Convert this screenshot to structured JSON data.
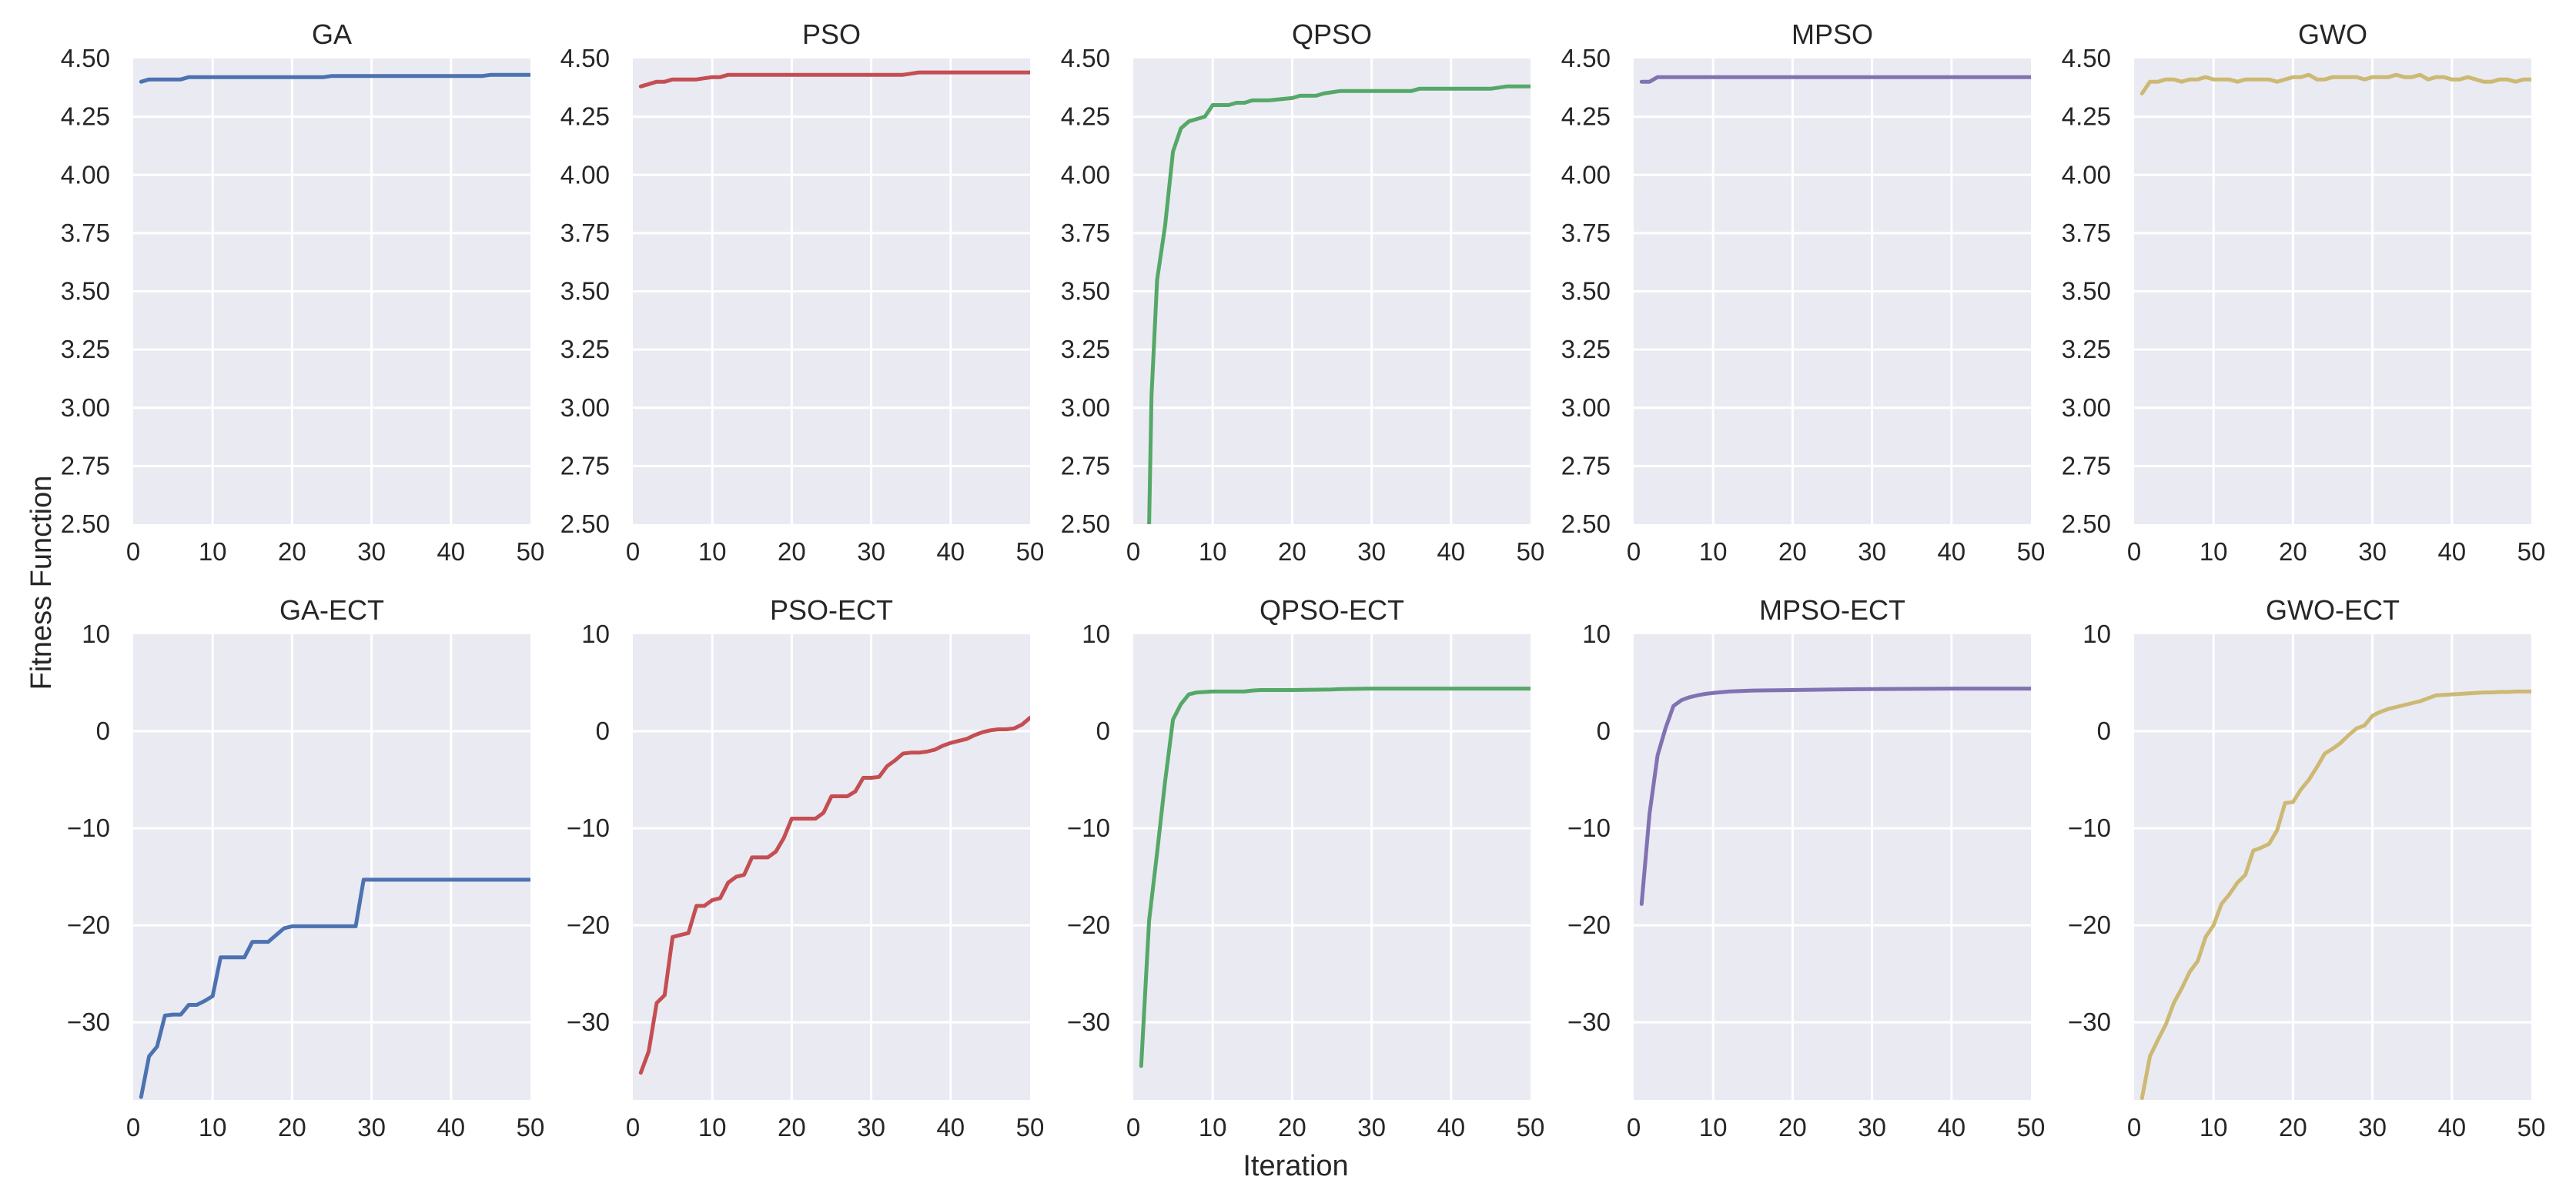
{
  "figure": {
    "xlabel": "Iteration",
    "ylabel": "Fitness Function"
  },
  "chart_data": [
    {
      "type": "line",
      "title": "GA",
      "color": "#4c72b0",
      "xlim": [
        0,
        50
      ],
      "ylim": [
        2.5,
        4.5
      ],
      "xticks": [
        0,
        10,
        20,
        30,
        40,
        50
      ],
      "yticks": [
        2.5,
        2.75,
        3.0,
        3.25,
        3.5,
        3.75,
        4.0,
        4.25,
        4.5
      ],
      "ytick_labels": [
        "2.50",
        "2.75",
        "3.00",
        "3.25",
        "3.50",
        "3.75",
        "4.00",
        "4.25",
        "4.50"
      ],
      "series": [
        {
          "name": "GA",
          "x": [
            1,
            2,
            3,
            4,
            5,
            6,
            7,
            8,
            10,
            15,
            20,
            24,
            25,
            30,
            35,
            40,
            44,
            45,
            46,
            50
          ],
          "y": [
            4.4,
            4.41,
            4.41,
            4.41,
            4.41,
            4.41,
            4.42,
            4.42,
            4.42,
            4.42,
            4.42,
            4.42,
            4.425,
            4.425,
            4.425,
            4.425,
            4.425,
            4.43,
            4.43,
            4.43
          ]
        }
      ]
    },
    {
      "type": "line",
      "title": "PSO",
      "color": "#c44e52",
      "xlim": [
        0,
        50
      ],
      "ylim": [
        2.5,
        4.5
      ],
      "xticks": [
        0,
        10,
        20,
        30,
        40,
        50
      ],
      "yticks": [
        2.5,
        2.75,
        3.0,
        3.25,
        3.5,
        3.75,
        4.0,
        4.25,
        4.5
      ],
      "ytick_labels": [
        "2.50",
        "2.75",
        "3.00",
        "3.25",
        "3.50",
        "3.75",
        "4.00",
        "4.25",
        "4.50"
      ],
      "series": [
        {
          "name": "PSO",
          "x": [
            1,
            2,
            3,
            4,
            5,
            6,
            8,
            10,
            11,
            12,
            15,
            20,
            25,
            30,
            34,
            35,
            36,
            40,
            45,
            50
          ],
          "y": [
            4.38,
            4.39,
            4.4,
            4.4,
            4.41,
            4.41,
            4.41,
            4.42,
            4.42,
            4.43,
            4.43,
            4.43,
            4.43,
            4.43,
            4.43,
            4.435,
            4.44,
            4.44,
            4.44,
            4.44
          ]
        }
      ]
    },
    {
      "type": "line",
      "title": "QPSO",
      "color": "#55a868",
      "xlim": [
        0,
        50
      ],
      "ylim": [
        2.5,
        4.5
      ],
      "xticks": [
        0,
        10,
        20,
        30,
        40,
        50
      ],
      "yticks": [
        2.5,
        2.75,
        3.0,
        3.25,
        3.5,
        3.75,
        4.0,
        4.25,
        4.5
      ],
      "ytick_labels": [
        "2.50",
        "2.75",
        "3.00",
        "3.25",
        "3.50",
        "3.75",
        "4.00",
        "4.25",
        "4.50"
      ],
      "series": [
        {
          "name": "QPSO",
          "x": [
            2,
            2.3,
            3,
            4,
            5,
            6,
            7,
            8,
            9,
            10,
            12,
            13,
            14,
            15,
            17,
            20,
            21,
            23,
            24,
            26,
            30,
            35,
            36,
            40,
            45,
            47,
            50
          ],
          "y": [
            2.5,
            3.05,
            3.55,
            3.78,
            4.1,
            4.2,
            4.23,
            4.24,
            4.25,
            4.3,
            4.3,
            4.31,
            4.31,
            4.32,
            4.32,
            4.33,
            4.34,
            4.34,
            4.35,
            4.36,
            4.36,
            4.36,
            4.37,
            4.37,
            4.37,
            4.38,
            4.38
          ]
        }
      ]
    },
    {
      "type": "line",
      "title": "MPSO",
      "color": "#8172b2",
      "xlim": [
        0,
        50
      ],
      "ylim": [
        2.5,
        4.5
      ],
      "xticks": [
        0,
        10,
        20,
        30,
        40,
        50
      ],
      "yticks": [
        2.5,
        2.75,
        3.0,
        3.25,
        3.5,
        3.75,
        4.0,
        4.25,
        4.5
      ],
      "ytick_labels": [
        "2.50",
        "2.75",
        "3.00",
        "3.25",
        "3.50",
        "3.75",
        "4.00",
        "4.25",
        "4.50"
      ],
      "series": [
        {
          "name": "MPSO",
          "x": [
            1,
            2,
            3,
            4,
            10,
            20,
            30,
            40,
            50
          ],
          "y": [
            4.4,
            4.4,
            4.42,
            4.42,
            4.42,
            4.42,
            4.42,
            4.42,
            4.42
          ]
        }
      ]
    },
    {
      "type": "line",
      "title": "GWO",
      "color": "#ccb974",
      "xlim": [
        0,
        50
      ],
      "ylim": [
        2.5,
        4.5
      ],
      "xticks": [
        0,
        10,
        20,
        30,
        40,
        50
      ],
      "yticks": [
        2.5,
        2.75,
        3.0,
        3.25,
        3.5,
        3.75,
        4.0,
        4.25,
        4.5
      ],
      "ytick_labels": [
        "2.50",
        "2.75",
        "3.00",
        "3.25",
        "3.50",
        "3.75",
        "4.00",
        "4.25",
        "4.50"
      ],
      "series": [
        {
          "name": "GWO",
          "x": [
            1,
            2,
            3,
            4,
            5,
            6,
            7,
            8,
            9,
            10,
            11,
            12,
            13,
            14,
            15,
            16,
            17,
            18,
            19,
            20,
            21,
            22,
            23,
            24,
            25,
            26,
            27,
            28,
            29,
            30,
            31,
            32,
            33,
            34,
            35,
            36,
            37,
            38,
            39,
            40,
            41,
            42,
            43,
            44,
            45,
            46,
            47,
            48,
            49,
            50
          ],
          "y": [
            4.35,
            4.4,
            4.4,
            4.41,
            4.41,
            4.4,
            4.41,
            4.41,
            4.42,
            4.41,
            4.41,
            4.41,
            4.4,
            4.41,
            4.41,
            4.41,
            4.41,
            4.4,
            4.41,
            4.42,
            4.42,
            4.43,
            4.41,
            4.41,
            4.42,
            4.42,
            4.42,
            4.42,
            4.41,
            4.42,
            4.42,
            4.42,
            4.43,
            4.42,
            4.42,
            4.43,
            4.41,
            4.42,
            4.42,
            4.41,
            4.41,
            4.42,
            4.41,
            4.4,
            4.4,
            4.41,
            4.41,
            4.4,
            4.41,
            4.41
          ]
        }
      ]
    },
    {
      "type": "line",
      "title": "GA-ECT",
      "color": "#4c72b0",
      "xlim": [
        0,
        50
      ],
      "ylim": [
        -38,
        10
      ],
      "xticks": [
        0,
        10,
        20,
        30,
        40,
        50
      ],
      "yticks": [
        -30,
        -20,
        -10,
        0,
        10
      ],
      "ytick_labels": [
        "−30",
        "−20",
        "−10",
        "0",
        "10"
      ],
      "series": [
        {
          "name": "GA-ECT",
          "x": [
            1,
            2,
            3,
            4,
            5,
            6,
            7,
            8,
            9,
            10,
            11,
            12,
            13,
            14,
            15,
            16,
            17,
            18,
            19,
            20,
            21,
            25,
            28,
            29,
            30,
            40,
            50
          ],
          "y": [
            -37.7,
            -33.5,
            -32.5,
            -29.3,
            -29.2,
            -29.2,
            -28.2,
            -28.2,
            -27.8,
            -27.3,
            -23.3,
            -23.3,
            -23.3,
            -23.3,
            -21.7,
            -21.7,
            -21.7,
            -21.0,
            -20.3,
            -20.1,
            -20.1,
            -20.1,
            -20.1,
            -15.3,
            -15.3,
            -15.3,
            -15.3
          ]
        }
      ]
    },
    {
      "type": "line",
      "title": "PSO-ECT",
      "color": "#c44e52",
      "xlim": [
        0,
        50
      ],
      "ylim": [
        -38,
        10
      ],
      "xticks": [
        0,
        10,
        20,
        30,
        40,
        50
      ],
      "yticks": [
        -30,
        -20,
        -10,
        0,
        10
      ],
      "ytick_labels": [
        "−30",
        "−20",
        "−10",
        "0",
        "10"
      ],
      "series": [
        {
          "name": "PSO-ECT",
          "x": [
            1,
            2,
            3,
            4,
            5,
            6,
            7,
            8,
            9,
            10,
            11,
            12,
            13,
            14,
            15,
            16,
            17,
            18,
            19,
            20,
            21,
            22,
            23,
            24,
            25,
            26,
            27,
            28,
            29,
            30,
            31,
            32,
            33,
            34,
            35,
            36,
            37,
            38,
            39,
            40,
            41,
            42,
            43,
            44,
            45,
            46,
            47,
            48,
            49,
            50
          ],
          "y": [
            -35.2,
            -33.0,
            -28.0,
            -27.2,
            -21.2,
            -21.0,
            -20.8,
            -18.0,
            -18.0,
            -17.4,
            -17.2,
            -15.6,
            -15.0,
            -14.8,
            -13.0,
            -13.0,
            -13.0,
            -12.4,
            -11.0,
            -9.0,
            -9.0,
            -9.0,
            -9.0,
            -8.4,
            -6.7,
            -6.7,
            -6.7,
            -6.2,
            -4.8,
            -4.8,
            -4.7,
            -3.6,
            -3.0,
            -2.3,
            -2.2,
            -2.2,
            -2.1,
            -1.9,
            -1.5,
            -1.2,
            -1.0,
            -0.8,
            -0.4,
            -0.1,
            0.1,
            0.2,
            0.2,
            0.3,
            0.7,
            1.4
          ]
        }
      ]
    },
    {
      "type": "line",
      "title": "QPSO-ECT",
      "color": "#55a868",
      "xlim": [
        0,
        50
      ],
      "ylim": [
        -38,
        10
      ],
      "xticks": [
        0,
        10,
        20,
        30,
        40,
        50
      ],
      "yticks": [
        -30,
        -20,
        -10,
        0,
        10
      ],
      "ytick_labels": [
        "−30",
        "−20",
        "−10",
        "0",
        "10"
      ],
      "series": [
        {
          "name": "QPSO-ECT",
          "x": [
            1,
            2,
            3,
            4,
            5,
            6,
            7,
            8,
            9,
            10,
            14,
            15,
            16,
            20,
            25,
            26,
            30,
            40,
            50
          ],
          "y": [
            -34.5,
            -19.5,
            -12.5,
            -5.2,
            1.2,
            2.8,
            3.8,
            4.0,
            4.05,
            4.1,
            4.1,
            4.2,
            4.25,
            4.25,
            4.3,
            4.35,
            4.4,
            4.4,
            4.4
          ]
        }
      ]
    },
    {
      "type": "line",
      "title": "MPSO-ECT",
      "color": "#8172b2",
      "xlim": [
        0,
        50
      ],
      "ylim": [
        -38,
        10
      ],
      "xticks": [
        0,
        10,
        20,
        30,
        40,
        50
      ],
      "yticks": [
        -30,
        -20,
        -10,
        0,
        10
      ],
      "ytick_labels": [
        "−30",
        "−20",
        "−10",
        "0",
        "10"
      ],
      "series": [
        {
          "name": "MPSO-ECT",
          "x": [
            1,
            2,
            3,
            4,
            5,
            6,
            7,
            8,
            9,
            10,
            12,
            15,
            20,
            25,
            30,
            40,
            50
          ],
          "y": [
            -17.8,
            -8.5,
            -2.5,
            0.3,
            2.6,
            3.2,
            3.5,
            3.7,
            3.85,
            3.95,
            4.1,
            4.2,
            4.25,
            4.3,
            4.35,
            4.4,
            4.4
          ]
        }
      ]
    },
    {
      "type": "line",
      "title": "GWO-ECT",
      "color": "#ccb974",
      "xlim": [
        0,
        50
      ],
      "ylim": [
        -38,
        10
      ],
      "xticks": [
        0,
        10,
        20,
        30,
        40,
        50
      ],
      "yticks": [
        -30,
        -20,
        -10,
        0,
        10
      ],
      "ytick_labels": [
        "−30",
        "−20",
        "−10",
        "0",
        "10"
      ],
      "series": [
        {
          "name": "GWO-ECT",
          "x": [
            1,
            2,
            3,
            4,
            5,
            6,
            7,
            8,
            9,
            10,
            11,
            12,
            13,
            14,
            15,
            16,
            17,
            18,
            19,
            20,
            21,
            22,
            23,
            24,
            25,
            26,
            27,
            28,
            29,
            30,
            31,
            32,
            33,
            34,
            35,
            36,
            37,
            38,
            39,
            40,
            41,
            42,
            43,
            44,
            45,
            46,
            47,
            48,
            49,
            50
          ],
          "y": [
            -37.8,
            -33.5,
            -31.8,
            -30.2,
            -28.0,
            -26.5,
            -24.8,
            -23.7,
            -21.2,
            -20.0,
            -17.8,
            -16.8,
            -15.6,
            -14.8,
            -12.3,
            -12.0,
            -11.6,
            -10.2,
            -7.4,
            -7.3,
            -6.0,
            -5.0,
            -3.7,
            -2.3,
            -1.8,
            -1.2,
            -0.4,
            0.3,
            0.6,
            1.6,
            2.0,
            2.3,
            2.5,
            2.7,
            2.9,
            3.1,
            3.4,
            3.7,
            3.75,
            3.8,
            3.85,
            3.9,
            3.95,
            4.0,
            4.0,
            4.05,
            4.05,
            4.1,
            4.1,
            4.1
          ]
        }
      ]
    }
  ]
}
